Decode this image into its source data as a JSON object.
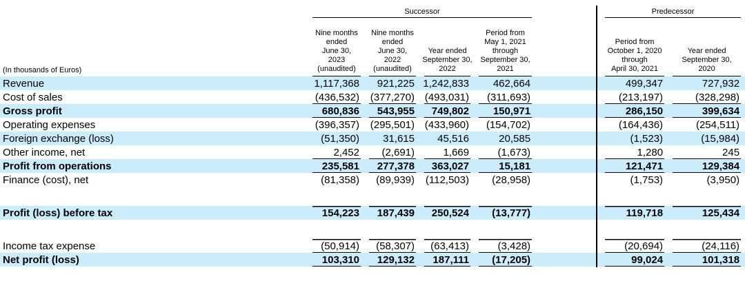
{
  "colors": {
    "highlight_band": "#cbecfb",
    "rule": "#000000",
    "text": "#000000"
  },
  "table": {
    "units_label": "(In thousands of Euros)",
    "groups": [
      {
        "label": "Successor",
        "colspan": 4
      },
      {
        "label": "Predecessor",
        "colspan": 2
      }
    ],
    "columns": [
      "Nine months\nended\nJune 30,\n2023\n(unaudited)",
      "Nine months\nended\nJune 30,\n2022\n(unaudited)",
      "Year ended\nSeptember 30,\n2022",
      "Period from\nMay 1, 2021\nthrough\nSeptember 30,\n2021",
      "Period from\nOctober 1, 2020\nthrough\nApril 30, 2021",
      "Year ended\nSeptember 30,\n2020"
    ],
    "rows": [
      {
        "label": "Revenue",
        "values": [
          "1,117,368",
          "921,225",
          "1,242,833",
          "462,664",
          "499,347",
          "727,932"
        ],
        "highlight": true,
        "bold": false,
        "rule": "none"
      },
      {
        "label": "Cost of sales",
        "values": [
          "(436,532)",
          "(377,270)",
          "(493,031)",
          "(311,693)",
          "(213,197)",
          "(328,298)"
        ],
        "highlight": false,
        "bold": false,
        "rule": "bottom"
      },
      {
        "label": "Gross profit",
        "values": [
          "680,836",
          "543,955",
          "749,802",
          "150,971",
          "286,150",
          "399,634"
        ],
        "highlight": true,
        "bold": true,
        "rule": "bottom"
      },
      {
        "label": "Operating expenses",
        "values": [
          "(396,357)",
          "(295,501)",
          "(433,960)",
          "(154,702)",
          "(164,436)",
          "(254,511)"
        ],
        "highlight": false,
        "bold": false,
        "rule": "none"
      },
      {
        "label": "Foreign exchange (loss)",
        "values": [
          "(51,350)",
          "31,615",
          "45,516",
          "20,585",
          "(1,523)",
          "(15,984)"
        ],
        "highlight": true,
        "bold": false,
        "rule": "none"
      },
      {
        "label": "Other income, net",
        "values": [
          "2,452",
          "(2,691)",
          "1,669",
          "(1,673)",
          "1,280",
          "245"
        ],
        "highlight": false,
        "bold": false,
        "rule": "bottom"
      },
      {
        "label": "Profit from operations",
        "values": [
          "235,581",
          "277,378",
          "363,027",
          "15,181",
          "121,471",
          "129,384"
        ],
        "highlight": true,
        "bold": true,
        "rule": "bottom"
      },
      {
        "label": "Finance (cost), net",
        "values": [
          "(81,358)",
          "(89,939)",
          "(112,503)",
          "(28,958)",
          "(1,753)",
          "(3,950)"
        ],
        "highlight": false,
        "bold": false,
        "rule": "none"
      },
      {
        "type": "spacer"
      },
      {
        "label": "Profit (loss) before tax",
        "values": [
          "154,223",
          "187,439",
          "250,524",
          "(13,777)",
          "119,718",
          "125,434"
        ],
        "highlight": true,
        "bold": true,
        "rule": "top"
      },
      {
        "type": "spacer"
      },
      {
        "label": "Income tax expense",
        "values": [
          "(50,914)",
          "(58,307)",
          "(63,413)",
          "(3,428)",
          "(20,694)",
          "(24,116)"
        ],
        "highlight": false,
        "bold": false,
        "rule": "both"
      },
      {
        "label": "Net profit (loss)",
        "values": [
          "103,310",
          "129,132",
          "187,111",
          "(17,205)",
          "99,024",
          "101,318"
        ],
        "highlight": true,
        "bold": true,
        "rule": "bottom"
      }
    ]
  }
}
